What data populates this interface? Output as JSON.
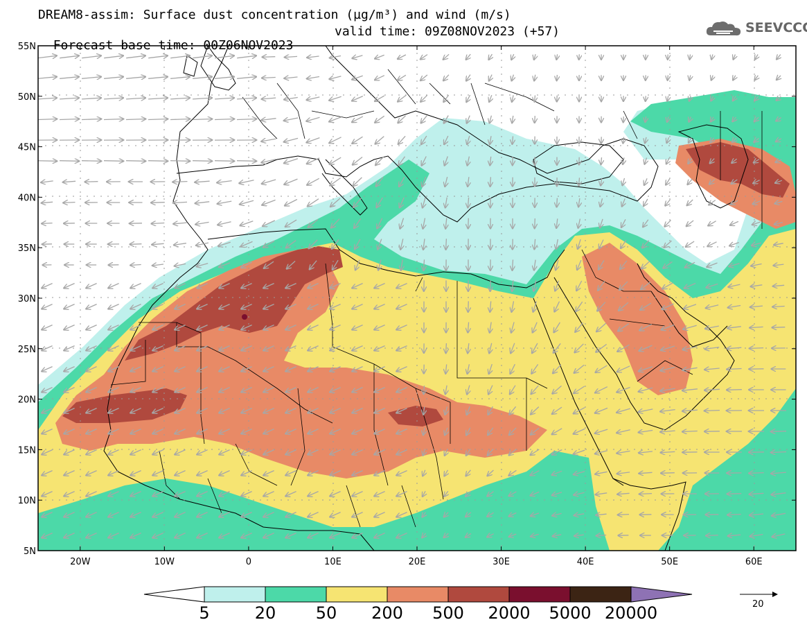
{
  "header": {
    "title_line1": "DREAM8-assim: Surface dust concentration (µg/m³) and wind (m/s)",
    "forecast_base": "Forecast base time: 00Z06NOV2023",
    "valid_time": "valid time: 09Z08NOV2023 (+57)"
  },
  "logo": {
    "text": "SEEVCCC",
    "icon": "cloud-logo-icon"
  },
  "map": {
    "lon_range": [
      -25,
      65
    ],
    "lat_range": [
      5,
      55
    ],
    "lat_labels": [
      "55N",
      "50N",
      "45N",
      "40N",
      "35N",
      "30N",
      "25N",
      "20N",
      "15N",
      "10N",
      "5N"
    ],
    "lat_values": [
      55,
      50,
      45,
      40,
      35,
      30,
      25,
      20,
      15,
      10,
      5
    ],
    "lon_labels": [
      "20W",
      "10W",
      "0",
      "10E",
      "20E",
      "30E",
      "40E",
      "50E",
      "60E"
    ],
    "lon_values": [
      -20,
      -10,
      0,
      10,
      20,
      30,
      40,
      50,
      60
    ],
    "grid": true
  },
  "colorbar": {
    "levels": [
      "5",
      "20",
      "50",
      "200",
      "500",
      "2000",
      "5000",
      "20000"
    ],
    "colors": [
      "#bff0ec",
      "#4cd9a8",
      "#f6e472",
      "#e88a66",
      "#b0493e",
      "#7a0f2e",
      "#3c2414",
      "#8e72b4"
    ],
    "under_color": "#ffffff",
    "over_color": "#8e72b4"
  },
  "wind_reference": {
    "label": "20",
    "icon": "wind-reference-arrow-icon"
  }
}
